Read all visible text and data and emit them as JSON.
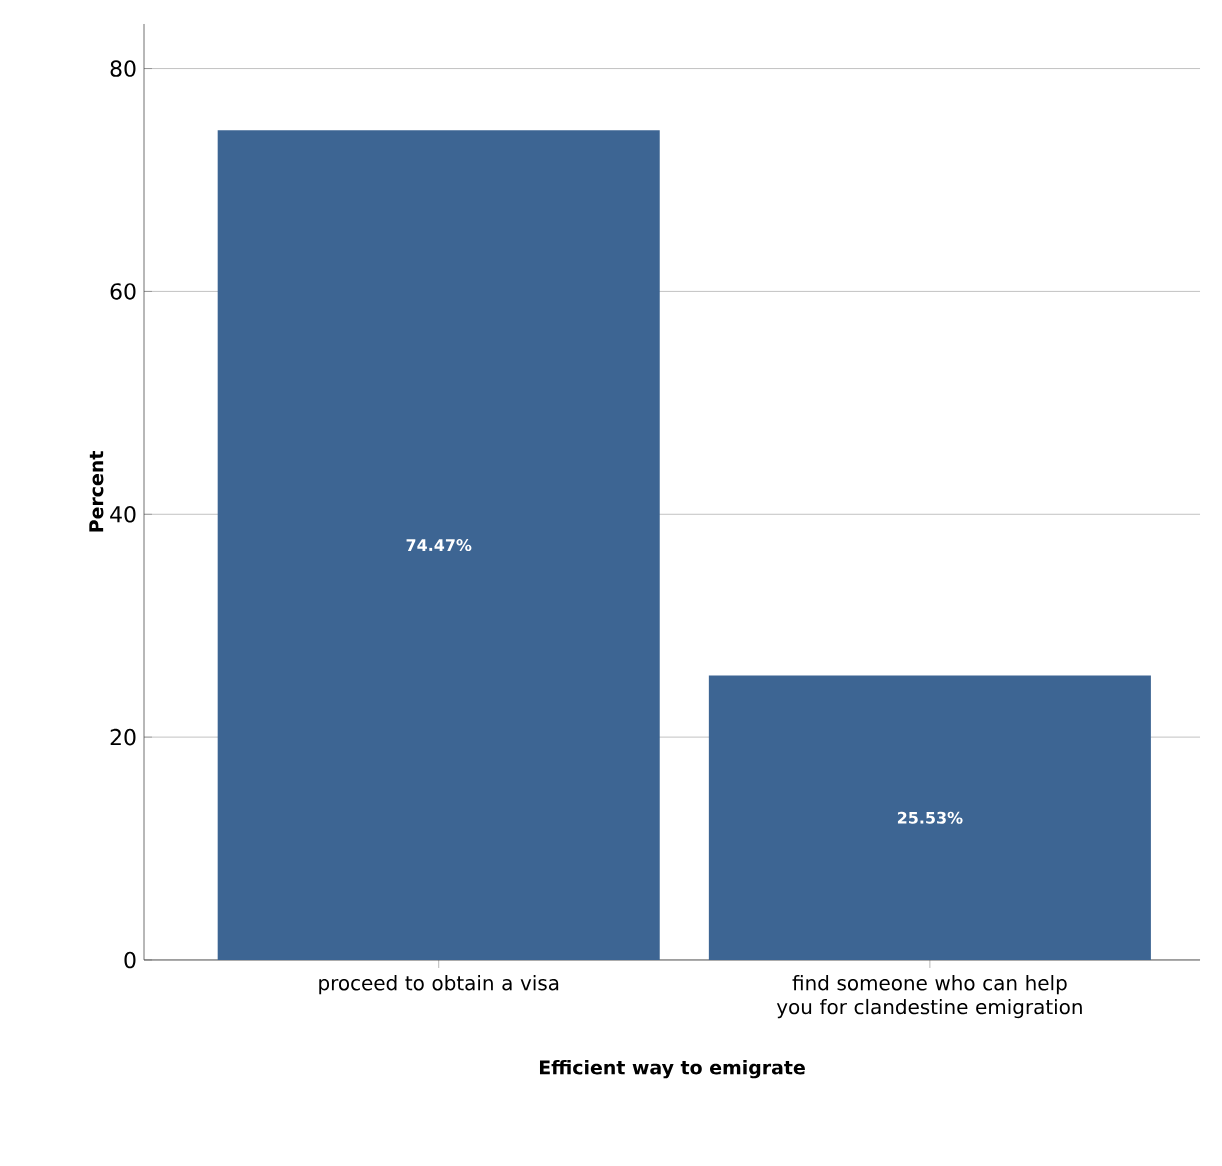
{
  "chart_data": {
    "type": "bar",
    "xlabel": "Efficient way to emigrate",
    "ylabel": "Percent",
    "categories": [
      "proceed to obtain a visa",
      "find someone who can help you for clandestine emigration"
    ],
    "values": [
      74.47,
      25.53
    ],
    "value_labels": [
      "74.47%",
      "25.53%"
    ],
    "color": "#3d6593",
    "ylim": [
      0,
      84
    ],
    "yticks": [
      0,
      20,
      40,
      60,
      80
    ],
    "grid": "y"
  }
}
